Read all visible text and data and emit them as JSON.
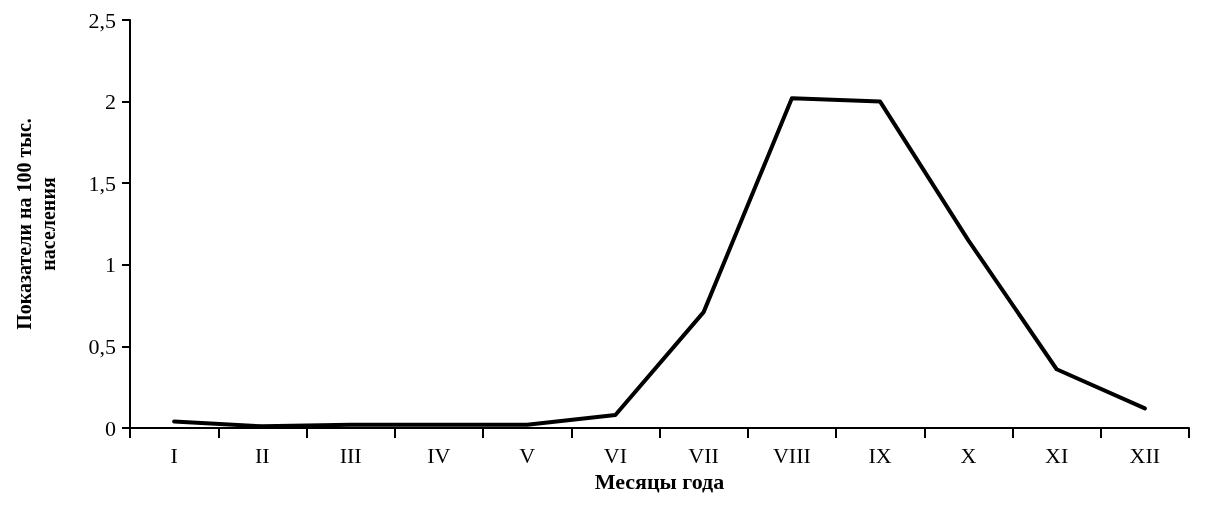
{
  "chart_data": {
    "type": "line",
    "xlabel": "Месяцы года",
    "ylabel": "Показатели на 100 тыс. населения",
    "categories": [
      "I",
      "II",
      "III",
      "IV",
      "V",
      "VI",
      "VII",
      "VIII",
      "IX",
      "X",
      "XI",
      "XII"
    ],
    "series": [
      {
        "color": "#000000",
        "values": [
          0.04,
          0.01,
          0.02,
          0.02,
          0.02,
          0.08,
          0.71,
          2.02,
          2.0,
          1.15,
          0.36,
          0.12
        ]
      }
    ],
    "ylim": [
      0,
      2.5
    ],
    "yticks": [
      0,
      {
        "value": 0.5,
        "label": "0,5"
      },
      1,
      {
        "value": 1.5,
        "label": "1,5"
      },
      2,
      {
        "value": 2.5,
        "label": "2,5"
      }
    ],
    "grid": false,
    "marker": "none",
    "line_style": "solid"
  }
}
